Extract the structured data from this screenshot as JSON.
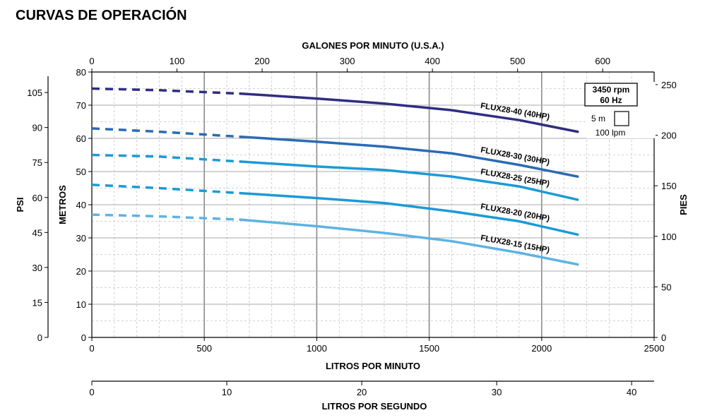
{
  "page": {
    "title": "CURVAS DE OPERACIÓN"
  },
  "chart_data": {
    "type": "line",
    "title": "CURVAS DE OPERACIÓN",
    "x_primary": {
      "label": "LITROS POR MINUTO",
      "range": [
        0,
        2500
      ],
      "ticks": [
        0,
        500,
        1000,
        1500,
        2000,
        2500
      ]
    },
    "x_top": {
      "label": "GALONES POR MINUTO (U.S.A.)",
      "range": [
        0,
        660.4
      ],
      "ticks": [
        0,
        100,
        200,
        300,
        400,
        500,
        600
      ]
    },
    "x_bottom": {
      "label": "LITROS POR SEGUNDO",
      "range": [
        0,
        41.667
      ],
      "ticks": [
        0,
        10,
        20,
        30,
        40
      ]
    },
    "y_primary": {
      "label": "METROS",
      "range": [
        0,
        80
      ],
      "ticks": [
        0,
        10,
        20,
        30,
        40,
        50,
        60,
        70,
        80
      ]
    },
    "y_psi": {
      "label": "PSI",
      "range": [
        0,
        113.8
      ],
      "ticks": [
        0,
        15,
        30,
        45,
        60,
        75,
        90,
        105
      ]
    },
    "y_feet": {
      "label": "PIES",
      "range": [
        0,
        262.5
      ],
      "ticks": [
        0,
        50,
        100,
        150,
        200,
        250
      ]
    },
    "grid": true,
    "legend_box": {
      "speed": "3450 rpm",
      "freq": "60 Hz",
      "scale_v": "5 m",
      "scale_h": "100 lpm"
    },
    "series": [
      {
        "name": "FLUX28-40 (40HP)",
        "color": "#2E2E82",
        "dashed_until": 660,
        "x": [
          0,
          300,
          660,
          1000,
          1300,
          1600,
          1900,
          2160
        ],
        "y": [
          75,
          74.5,
          73.5,
          72,
          70.5,
          68.5,
          65.5,
          62
        ]
      },
      {
        "name": "FLUX28-30 (30HP)",
        "color": "#2A6BB5",
        "dashed_until": 660,
        "x": [
          0,
          300,
          660,
          1000,
          1300,
          1600,
          1900,
          2160
        ],
        "y": [
          63,
          62,
          60.5,
          59,
          57.5,
          55.5,
          52,
          48.5
        ]
      },
      {
        "name": "FLUX28-25 (25HP)",
        "color": "#1C9AD6",
        "dashed_until": 660,
        "x": [
          0,
          300,
          660,
          1000,
          1300,
          1600,
          1900,
          2160
        ],
        "y": [
          55,
          54.5,
          53,
          51.5,
          50.5,
          48.5,
          45.5,
          41.5
        ]
      },
      {
        "name": "FLUX28-20 (20HP)",
        "color": "#1C9AD6",
        "dashed_until": 660,
        "x": [
          0,
          300,
          660,
          1000,
          1300,
          1600,
          1900,
          2160
        ],
        "y": [
          46,
          45,
          43.5,
          42,
          40.5,
          38,
          35,
          31
        ]
      },
      {
        "name": "FLUX28-15 (15HP)",
        "color": "#5DB3E3",
        "dashed_until": 660,
        "x": [
          0,
          300,
          660,
          1000,
          1300,
          1600,
          1900,
          2160
        ],
        "y": [
          37,
          36.5,
          35.5,
          33.5,
          31.5,
          29,
          25.5,
          22
        ]
      }
    ]
  }
}
